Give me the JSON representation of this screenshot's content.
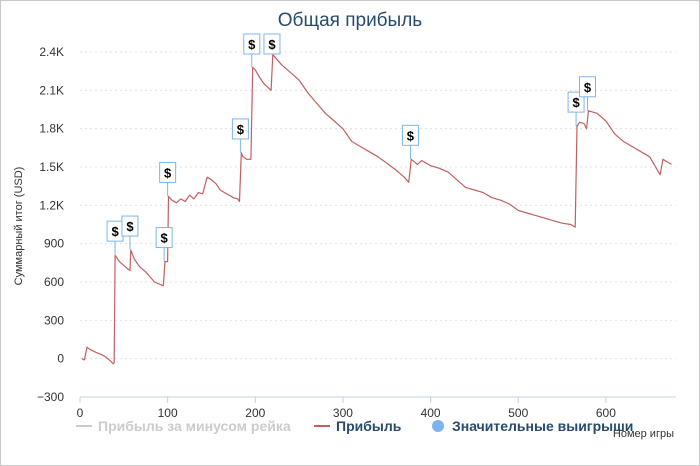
{
  "chart_data": {
    "type": "line",
    "title": "Общая прибыль",
    "xlabel": "Номер игры",
    "ylabel": "Суммарный итог (USD)",
    "xlim": [
      0,
      680
    ],
    "ylim": [
      -300,
      2400
    ],
    "x_ticks": [
      0,
      100,
      200,
      300,
      400,
      500,
      600
    ],
    "y_ticks": [
      "−300",
      "0",
      "300",
      "600",
      "900",
      "1.2K",
      "1.5K",
      "1.8K",
      "2.1K",
      "2.4K"
    ],
    "y_tick_values": [
      -300,
      0,
      300,
      600,
      900,
      1200,
      1500,
      1800,
      2100,
      2400
    ],
    "grid": true,
    "legend_position": "bottom",
    "legend": [
      {
        "label": "Прибыль за минусом рейка",
        "color": "#cccccc",
        "marker": "line",
        "visible": false
      },
      {
        "label": "Прибыль",
        "color": "#c06060",
        "marker": "line",
        "visible": true
      },
      {
        "label": "Значительные выигрыши",
        "color": "#7cb5ec",
        "marker": "circle",
        "visible": true
      }
    ],
    "series": [
      {
        "name": "Прибыль",
        "color": "#c06060",
        "points": [
          [
            2,
            0
          ],
          [
            5,
            -10
          ],
          [
            8,
            90
          ],
          [
            12,
            70
          ],
          [
            18,
            50
          ],
          [
            25,
            30
          ],
          [
            30,
            10
          ],
          [
            35,
            -20
          ],
          [
            38,
            -40
          ],
          [
            39,
            -30
          ],
          [
            40,
            810
          ],
          [
            45,
            760
          ],
          [
            50,
            730
          ],
          [
            55,
            700
          ],
          [
            57,
            690
          ],
          [
            58,
            850
          ],
          [
            62,
            780
          ],
          [
            68,
            720
          ],
          [
            75,
            680
          ],
          [
            80,
            640
          ],
          [
            85,
            600
          ],
          [
            92,
            580
          ],
          [
            95,
            570
          ],
          [
            97,
            760
          ],
          [
            100,
            760
          ],
          [
            101,
            1270
          ],
          [
            105,
            1240
          ],
          [
            110,
            1220
          ],
          [
            115,
            1250
          ],
          [
            120,
            1230
          ],
          [
            125,
            1280
          ],
          [
            130,
            1250
          ],
          [
            135,
            1300
          ],
          [
            140,
            1290
          ],
          [
            145,
            1420
          ],
          [
            150,
            1400
          ],
          [
            155,
            1370
          ],
          [
            160,
            1320
          ],
          [
            165,
            1300
          ],
          [
            170,
            1280
          ],
          [
            175,
            1260
          ],
          [
            180,
            1250
          ],
          [
            182,
            1230
          ],
          [
            184,
            1610
          ],
          [
            186,
            1580
          ],
          [
            190,
            1560
          ],
          [
            195,
            1560
          ],
          [
            197,
            2280
          ],
          [
            200,
            2260
          ],
          [
            205,
            2200
          ],
          [
            210,
            2150
          ],
          [
            215,
            2120
          ],
          [
            218,
            2100
          ],
          [
            220,
            2380
          ],
          [
            225,
            2340
          ],
          [
            230,
            2300
          ],
          [
            240,
            2240
          ],
          [
            250,
            2180
          ],
          [
            260,
            2080
          ],
          [
            270,
            2000
          ],
          [
            280,
            1920
          ],
          [
            290,
            1860
          ],
          [
            300,
            1800
          ],
          [
            310,
            1700
          ],
          [
            320,
            1660
          ],
          [
            330,
            1620
          ],
          [
            340,
            1580
          ],
          [
            350,
            1530
          ],
          [
            360,
            1480
          ],
          [
            370,
            1420
          ],
          [
            375,
            1380
          ],
          [
            378,
            1560
          ],
          [
            385,
            1520
          ],
          [
            390,
            1550
          ],
          [
            400,
            1510
          ],
          [
            410,
            1490
          ],
          [
            420,
            1460
          ],
          [
            430,
            1400
          ],
          [
            440,
            1340
          ],
          [
            450,
            1320
          ],
          [
            460,
            1300
          ],
          [
            470,
            1260
          ],
          [
            480,
            1240
          ],
          [
            490,
            1210
          ],
          [
            500,
            1160
          ],
          [
            510,
            1140
          ],
          [
            520,
            1120
          ],
          [
            530,
            1100
          ],
          [
            540,
            1080
          ],
          [
            550,
            1060
          ],
          [
            560,
            1050
          ],
          [
            565,
            1030
          ],
          [
            567,
            1820
          ],
          [
            570,
            1850
          ],
          [
            575,
            1840
          ],
          [
            578,
            1800
          ],
          [
            580,
            1940
          ],
          [
            590,
            1920
          ],
          [
            600,
            1860
          ],
          [
            610,
            1760
          ],
          [
            620,
            1700
          ],
          [
            630,
            1660
          ],
          [
            640,
            1620
          ],
          [
            650,
            1580
          ],
          [
            660,
            1460
          ],
          [
            662,
            1440
          ],
          [
            665,
            1560
          ],
          [
            670,
            1540
          ],
          [
            675,
            1520
          ]
        ]
      }
    ],
    "flags": [
      {
        "x": 40,
        "y": 810,
        "label": "$"
      },
      {
        "x": 57,
        "y": 850,
        "label": "$"
      },
      {
        "x": 96,
        "y": 760,
        "label": "$"
      },
      {
        "x": 100,
        "y": 1270,
        "label": "$"
      },
      {
        "x": 183,
        "y": 1610,
        "label": "$"
      },
      {
        "x": 196,
        "y": 2280,
        "label": "$"
      },
      {
        "x": 219,
        "y": 2380,
        "label": "$"
      },
      {
        "x": 377,
        "y": 1560,
        "label": "$"
      },
      {
        "x": 566,
        "y": 1820,
        "label": "$"
      },
      {
        "x": 579,
        "y": 1940,
        "label": "$"
      }
    ]
  }
}
